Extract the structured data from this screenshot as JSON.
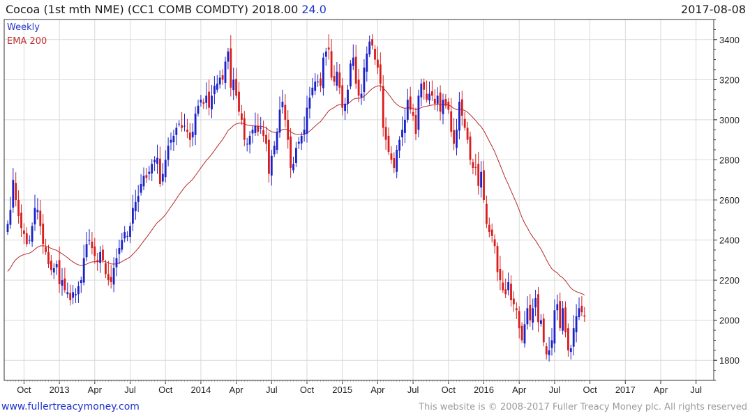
{
  "header": {
    "title": "Cocoa (1st mth NME) (CC1 COMB COMDTY) 2018.00",
    "change": "24.0",
    "date": "2017-08-08"
  },
  "legend": {
    "period": "Weekly",
    "ema": "EMA 200"
  },
  "footer": {
    "site": "www.fullertreacymoney.com",
    "copyright": "This website is © 2008-2017 Fuller Treacy Money plc. All rights reserved"
  },
  "colors": {
    "up": "#1a22c8",
    "down": "#d91c1c",
    "ema": "#b52a2a",
    "grid": "#d9d9d9",
    "axis": "#333333"
  },
  "chart_data": {
    "type": "candlestick",
    "frequency": "weekly",
    "ylim": [
      1700,
      3500
    ],
    "y_ticks": [
      1800,
      2000,
      2200,
      2400,
      2600,
      2800,
      3000,
      3200,
      3400
    ],
    "x_tick_labels": [
      "Oct",
      "2013",
      "Apr",
      "Jul",
      "Oct",
      "2014",
      "Apr",
      "Jul",
      "Oct",
      "2015",
      "Apr",
      "Jul",
      "Oct",
      "2016",
      "Apr",
      "Jul",
      "Oct",
      "2017",
      "Apr",
      "Jul"
    ],
    "x_tick_weeks": [
      6,
      19,
      32,
      45,
      58,
      71,
      84,
      97,
      110,
      123,
      136,
      149,
      162,
      175,
      188,
      201,
      214,
      227,
      240,
      253
    ],
    "grid": true,
    "legend_position": "top-left",
    "close": [
      2480,
      2550,
      2700,
      2600,
      2520,
      2460,
      2430,
      2380,
      2400,
      2470,
      2560,
      2550,
      2470,
      2380,
      2340,
      2280,
      2250,
      2260,
      2280,
      2180,
      2200,
      2150,
      2140,
      2100,
      2140,
      2130,
      2170,
      2200,
      2310,
      2380,
      2400,
      2360,
      2320,
      2290,
      2340,
      2300,
      2230,
      2200,
      2190,
      2260,
      2310,
      2360,
      2400,
      2440,
      2420,
      2470,
      2560,
      2590,
      2620,
      2680,
      2720,
      2710,
      2740,
      2780,
      2800,
      2810,
      2680,
      2730,
      2800,
      2870,
      2900,
      2920,
      2960,
      2980,
      2960,
      2970,
      2940,
      2900,
      2940,
      3030,
      3070,
      3100,
      3080,
      3120,
      3060,
      3120,
      3170,
      3180,
      3210,
      3200,
      3290,
      3340,
      3160,
      3200,
      3120,
      3040,
      3000,
      2900,
      2880,
      2920,
      2950,
      2970,
      2940,
      2960,
      2920,
      2880,
      2730,
      2820,
      2870,
      2940,
      3050,
      3090,
      3000,
      2900,
      2760,
      2780,
      2860,
      2890,
      2920,
      2950,
      3060,
      3110,
      3160,
      3190,
      3190,
      3170,
      3310,
      3340,
      3350,
      3210,
      3190,
      3240,
      3160,
      3060,
      3080,
      3150,
      3280,
      3310,
      3180,
      3120,
      3130,
      3260,
      3330,
      3390,
      3370,
      3300,
      3260,
      3180,
      2960,
      2900,
      2840,
      2800,
      2760,
      2850,
      2900,
      2950,
      3000,
      3100,
      3050,
      3020,
      2930,
      3120,
      3180,
      3150,
      3100,
      3130,
      3120,
      3080,
      3120,
      3040,
      3100,
      3070,
      3050,
      2940,
      2880,
      2950,
      3090,
      3020,
      2960,
      2900,
      2800,
      2760,
      2760,
      2670,
      2740,
      2600,
      2480,
      2440,
      2420,
      2370,
      2240,
      2200,
      2150,
      2130,
      2190,
      2100,
      2080,
      2050,
      1960,
      1900,
      1980,
      2060,
      2000,
      2060,
      2110,
      1990,
      2000,
      1890,
      1830,
      1850,
      1900,
      2050,
      2080,
      1960,
      2060,
      1940,
      1850,
      1860,
      1960,
      2020,
      2060,
      2040,
      2018
    ]
  }
}
